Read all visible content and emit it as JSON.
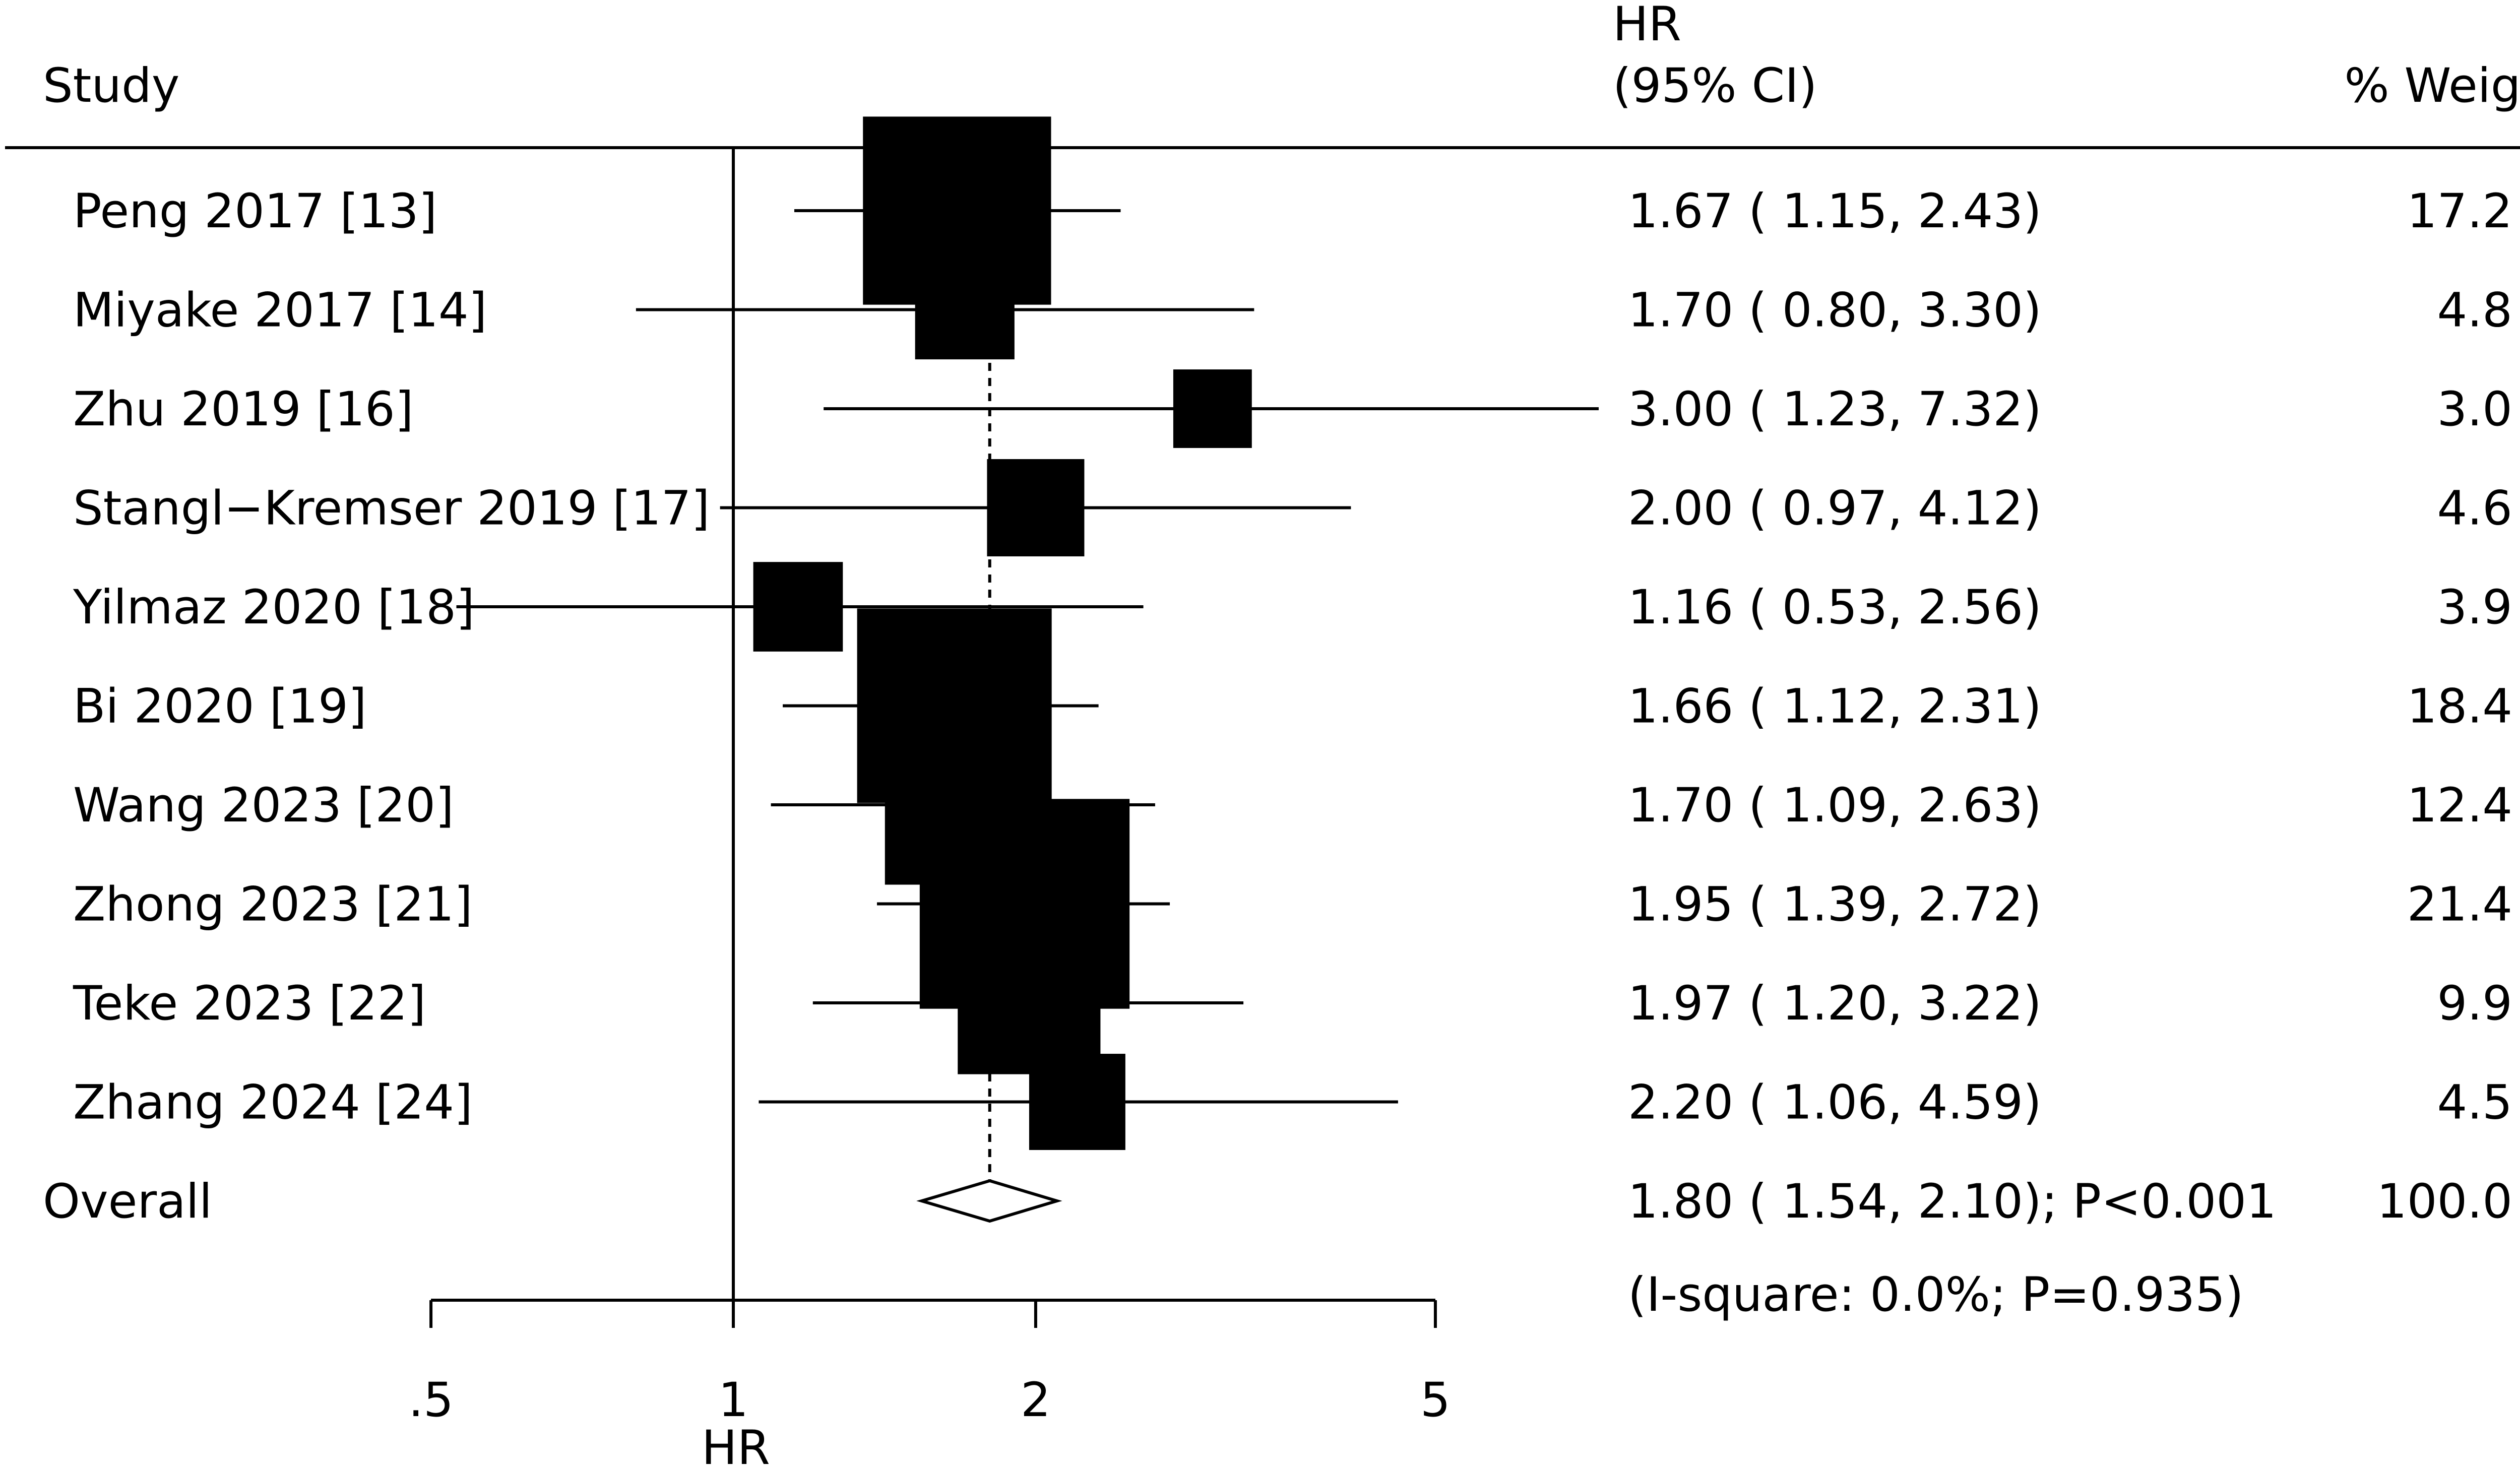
{
  "chart_data": {
    "type": "forest",
    "headers": {
      "study": "Study",
      "effect_line1": "HR",
      "effect_line2": "(95% CI)",
      "weight": "% Weight"
    },
    "xlabel": "HR",
    "x_scale": "log",
    "xlim": [
      0.5,
      5
    ],
    "x_ticks": [
      0.5,
      1,
      2,
      5
    ],
    "x_tick_labels": [
      ".5",
      "1",
      "2",
      "5"
    ],
    "null_line": 1,
    "studies": [
      {
        "label": "Peng 2017 [13]",
        "hr": 1.67,
        "lo": 1.15,
        "hi": 2.43,
        "ci_text": "1.67 ( 1.15, 2.43)",
        "weight": 17.2,
        "weight_text": "17.2"
      },
      {
        "label": "Miyake 2017 [14]",
        "hr": 1.7,
        "lo": 0.8,
        "hi": 3.3,
        "ci_text": "1.70 ( 0.80, 3.30)",
        "weight": 4.8,
        "weight_text": "4.8"
      },
      {
        "label": "Zhu 2019 [16]",
        "hr": 3.0,
        "lo": 1.23,
        "hi": 7.32,
        "ci_text": "3.00 ( 1.23, 7.32)",
        "weight": 3.0,
        "weight_text": "3.0"
      },
      {
        "label": "Stangl−Kremser 2019 [17]",
        "hr": 2.0,
        "lo": 0.97,
        "hi": 4.12,
        "ci_text": "2.00 ( 0.97, 4.12)",
        "weight": 4.6,
        "weight_text": "4.6"
      },
      {
        "label": "Yilmaz 2020 [18]",
        "hr": 1.16,
        "lo": 0.53,
        "hi": 2.56,
        "ci_text": "1.16 ( 0.53, 2.56)",
        "weight": 3.9,
        "weight_text": "3.9"
      },
      {
        "label": "Bi 2020 [19]",
        "hr": 1.66,
        "lo": 1.12,
        "hi": 2.31,
        "ci_text": "1.66 ( 1.12, 2.31)",
        "weight": 18.4,
        "weight_text": "18.4"
      },
      {
        "label": "Wang 2023 [20]",
        "hr": 1.7,
        "lo": 1.09,
        "hi": 2.63,
        "ci_text": "1.70 ( 1.09, 2.63)",
        "weight": 12.4,
        "weight_text": "12.4"
      },
      {
        "label": "Zhong 2023 [21]",
        "hr": 1.95,
        "lo": 1.39,
        "hi": 2.72,
        "ci_text": "1.95 ( 1.39, 2.72)",
        "weight": 21.4,
        "weight_text": "21.4"
      },
      {
        "label": "Teke 2023 [22]",
        "hr": 1.97,
        "lo": 1.2,
        "hi": 3.22,
        "ci_text": "1.97 ( 1.20, 3.22)",
        "weight": 9.9,
        "weight_text": "9.9"
      },
      {
        "label": "Zhang 2024 [24]",
        "hr": 2.2,
        "lo": 1.06,
        "hi": 4.59,
        "ci_text": "2.20 ( 1.06, 4.59)",
        "weight": 4.5,
        "weight_text": "4.5"
      }
    ],
    "overall": {
      "label": "Overall",
      "hr": 1.8,
      "lo": 1.54,
      "hi": 2.1,
      "ci_text": "1.80 ( 1.54, 2.10); P<0.001",
      "heterogeneity_text": "(I-square: 0.0%; P=0.935)",
      "weight_text": "100.0"
    }
  }
}
